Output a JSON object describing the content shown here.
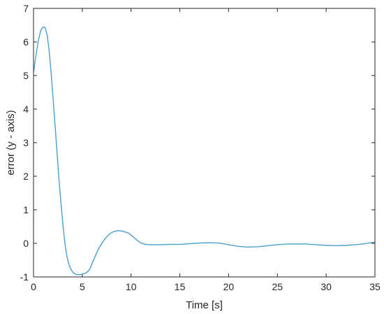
{
  "chart_data": {
    "type": "line",
    "title": "",
    "xlabel": "Time [s]",
    "ylabel": "error (y - axis)",
    "xlim": [
      0,
      35
    ],
    "ylim": [
      -1,
      7
    ],
    "x_ticks": [
      0,
      5,
      10,
      15,
      20,
      25,
      30,
      35
    ],
    "x_tick_labels": [
      "0",
      "5",
      "10",
      "15",
      "20",
      "25",
      "30",
      "35"
    ],
    "y_ticks": [
      -1,
      0,
      1,
      2,
      3,
      4,
      5,
      6,
      7
    ],
    "y_tick_labels": [
      "-1",
      "0",
      "1",
      "2",
      "3",
      "4",
      "5",
      "6",
      "7"
    ],
    "grid": false,
    "box": true,
    "legend": false,
    "series": [
      {
        "color": "#4a9fd0",
        "x": [
          0,
          0.25,
          0.5,
          0.75,
          1.0,
          1.2,
          1.4,
          1.6,
          1.8,
          2.0,
          2.2,
          2.4,
          2.6,
          2.8,
          3.0,
          3.2,
          3.4,
          3.6,
          3.8,
          4.0,
          4.2,
          4.4,
          4.6,
          4.8,
          5.0,
          5.2,
          5.4,
          5.6,
          5.8,
          6.0,
          6.3,
          6.6,
          7.0,
          7.4,
          7.8,
          8.2,
          8.6,
          9.0,
          9.4,
          9.8,
          10.2,
          10.6,
          11.0,
          11.5,
          12.0,
          12.5,
          13.0,
          14.0,
          15.0,
          16.0,
          17.0,
          18.0,
          19.0,
          20.0,
          21.0,
          22.0,
          23.0,
          24.0,
          25.0,
          26.0,
          27.0,
          28.0,
          29.0,
          30.0,
          31.0,
          32.0,
          33.0,
          34.0,
          35.0
        ],
        "y": [
          5.1,
          5.6,
          6.05,
          6.35,
          6.45,
          6.42,
          6.2,
          5.75,
          5.1,
          4.35,
          3.55,
          2.75,
          1.95,
          1.25,
          0.6,
          0.05,
          -0.35,
          -0.6,
          -0.75,
          -0.85,
          -0.9,
          -0.93,
          -0.93,
          -0.93,
          -0.92,
          -0.9,
          -0.88,
          -0.83,
          -0.75,
          -0.6,
          -0.4,
          -0.2,
          0.0,
          0.16,
          0.28,
          0.35,
          0.38,
          0.37,
          0.34,
          0.3,
          0.2,
          0.1,
          0.01,
          -0.03,
          -0.04,
          -0.04,
          -0.04,
          -0.03,
          -0.03,
          -0.01,
          0.01,
          0.02,
          0.01,
          -0.04,
          -0.09,
          -0.11,
          -0.1,
          -0.07,
          -0.04,
          -0.02,
          -0.02,
          -0.02,
          -0.04,
          -0.06,
          -0.07,
          -0.06,
          -0.04,
          -0.01,
          0.04
        ]
      }
    ]
  }
}
